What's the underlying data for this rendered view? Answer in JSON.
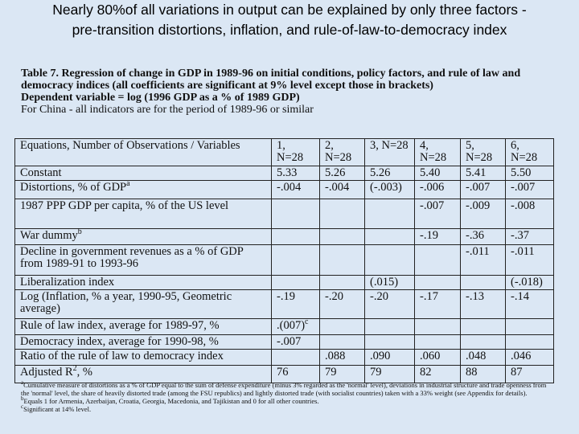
{
  "slide": {
    "title_lines": [
      "Nearly 80%of all variations in output can be explained by only three factors -",
      "pre-transition distortions, inflation, and rule-of-law-to-democracy index"
    ],
    "caption": {
      "heading": "Table 7. Regression of change in GDP in 1989-96 on initial conditions, policy factors, and rule of law and democracy indices (all coefficients are significant at 9% level except those in brackets)",
      "dependent": "Dependent variable = log (1996 GDP as a % of 1989 GDP)",
      "china_note": "For China - all indicators are for the period of 1989-96 or similar"
    },
    "table": {
      "header": {
        "label": "Equations, Number of Observations / Variables",
        "columns": [
          "1, N=28",
          "2, N=28",
          "3, N=28",
          "4, N=28",
          "5, N=28",
          "6, N=28"
        ]
      },
      "rows": [
        {
          "label": "Constant",
          "cells": [
            "5.33",
            "5.26",
            "5.26",
            "5.40",
            "5.41",
            "5.50"
          ]
        },
        {
          "label": "Distortions, % of GDP",
          "label_sup": "a",
          "cells": [
            "-.004",
            "-.004",
            "(-.003)",
            "-.006",
            "-.007",
            "-.007"
          ]
        },
        {
          "label": "1987 PPP GDP per capita, % of the US level",
          "cells": [
            null,
            null,
            null,
            "-.007",
            "-.009",
            "-.008"
          ]
        },
        {
          "label": "War dummy",
          "label_sup": "b",
          "cells": [
            null,
            null,
            null,
            "-.19",
            "-.36",
            "-.37"
          ]
        },
        {
          "label": "Decline in government revenues as a % of GDP from 1989-91 to 1993-96",
          "cells": [
            null,
            null,
            null,
            null,
            "-.011",
            "-.011"
          ]
        },
        {
          "label": "Liberalization index",
          "cells": [
            null,
            null,
            "(.015)",
            null,
            null,
            "(-.018)"
          ]
        },
        {
          "label": "Log (Inflation, % a year, 1990-95, Geometric average)",
          "cells": [
            "-.19",
            "-.20",
            "-.20",
            "-.17",
            "-.13",
            "-.14"
          ]
        },
        {
          "label": "Rule of law index,  average for 1989-97, %",
          "cells": [
            {
              "text": ".(007)",
              "sup": "c"
            },
            null,
            null,
            null,
            null,
            null
          ]
        },
        {
          "label": "Democracy index, average for 1990-98, %",
          "cells": [
            "-.007",
            null,
            null,
            null,
            null,
            null
          ]
        },
        {
          "label": "Ratio of the rule of law to democracy index",
          "cells": [
            null,
            ".088",
            ".090",
            ".060",
            ".048",
            ".046"
          ]
        },
        {
          "label": "Adjusted R",
          "label_sup": "2",
          "label_suffix": ", %",
          "cells": [
            "76",
            "79",
            "79",
            "82",
            "88",
            "87"
          ]
        }
      ]
    },
    "footnotes": [
      {
        "mark": "a",
        "text": "Cumulative measure of distortions as a % of GDP equal to the sum of defense expenditure (minus 3% regarded as the 'normal' level), deviations in industrial structure and trade openness from the 'normal' level, the share of heavily distorted trade (among the FSU republics) and lightly distorted trade (with socialist countries) taken with a 33% weight (see Appendix for details)."
      },
      {
        "mark": "b",
        "text": "Equals 1 for Armenia, Azerbaijan, Croatia, Georgia, Macedonia, and Tajikistan and 0 for all other countries."
      },
      {
        "mark": "c",
        "text": "Significant at 14% level."
      }
    ]
  }
}
